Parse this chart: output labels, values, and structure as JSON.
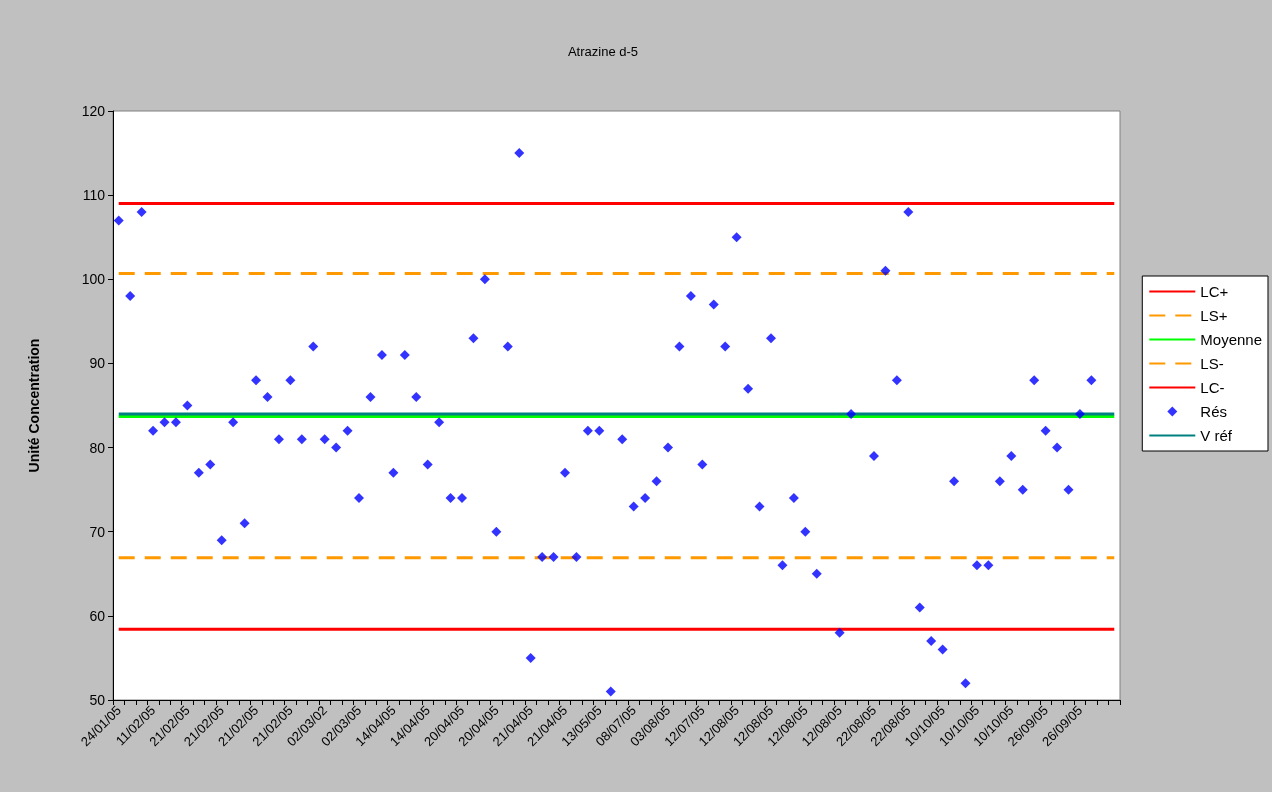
{
  "chart_data": {
    "type": "line",
    "title": "Atrazine d-5",
    "ylabel": "Unité Concentration",
    "categories": [
      "24/01/05",
      null,
      null,
      "11/02/05",
      null,
      null,
      "21/02/05",
      null,
      null,
      "21/02/05",
      null,
      null,
      "21/02/05",
      null,
      null,
      "21/02/05",
      null,
      null,
      "02/03/02",
      null,
      null,
      "02/03/05",
      null,
      null,
      "14/04/05",
      null,
      null,
      "14/04/05",
      null,
      null,
      "20/04/05",
      null,
      null,
      "20/04/05",
      null,
      null,
      "21/04/05",
      null,
      null,
      "21/04/05",
      null,
      null,
      "13/05/05",
      null,
      null,
      "08/07/05",
      null,
      null,
      "03/08/05",
      null,
      null,
      "12/07/05",
      null,
      null,
      "12/08/05",
      null,
      null,
      "12/08/05",
      null,
      null,
      "12/08/05",
      null,
      null,
      "12/08/05",
      null,
      null,
      "22/08/05",
      null,
      null,
      "22/08/05",
      null,
      null,
      "10/10/05",
      null,
      null,
      "10/10/05",
      null,
      null,
      "10/10/05",
      null,
      null,
      "26/09/05",
      null,
      null,
      "26/09/05",
      null,
      null,
      null
    ],
    "series": [
      {
        "name": "LC+",
        "color": "#ff0000",
        "line_style": "solid",
        "values": [
          109,
          109,
          109,
          109,
          109,
          109,
          109,
          109,
          109,
          109,
          109,
          109,
          109,
          109,
          109,
          109,
          109,
          109,
          109,
          109,
          109,
          109,
          109,
          109,
          109,
          109,
          109,
          109,
          109,
          109,
          109,
          109,
          109,
          109,
          109,
          109,
          109,
          109,
          109,
          109,
          109,
          109,
          109,
          109,
          109,
          109,
          109,
          109,
          109,
          109,
          109,
          109,
          109,
          109,
          109,
          109,
          109,
          109,
          109,
          109,
          109,
          109,
          109,
          109,
          109,
          109,
          109,
          109,
          109,
          109,
          109,
          109,
          109,
          109,
          109,
          109,
          109,
          109,
          109,
          109,
          109,
          109,
          109,
          109,
          109,
          109,
          109,
          109
        ]
      },
      {
        "name": "LS+",
        "color": "#ff9900",
        "line_style": "dashed",
        "values": [
          100.7,
          100.7,
          100.7,
          100.7,
          100.7,
          100.7,
          100.7,
          100.7,
          100.7,
          100.7,
          100.7,
          100.7,
          100.7,
          100.7,
          100.7,
          100.7,
          100.7,
          100.7,
          100.7,
          100.7,
          100.7,
          100.7,
          100.7,
          100.7,
          100.7,
          100.7,
          100.7,
          100.7,
          100.7,
          100.7,
          100.7,
          100.7,
          100.7,
          100.7,
          100.7,
          100.7,
          100.7,
          100.7,
          100.7,
          100.7,
          100.7,
          100.7,
          100.7,
          100.7,
          100.7,
          100.7,
          100.7,
          100.7,
          100.7,
          100.7,
          100.7,
          100.7,
          100.7,
          100.7,
          100.7,
          100.7,
          100.7,
          100.7,
          100.7,
          100.7,
          100.7,
          100.7,
          100.7,
          100.7,
          100.7,
          100.7,
          100.7,
          100.7,
          100.7,
          100.7,
          100.7,
          100.7,
          100.7,
          100.7,
          100.7,
          100.7,
          100.7,
          100.7,
          100.7,
          100.7,
          100.7,
          100.7,
          100.7,
          100.7,
          100.7,
          100.7,
          100.7,
          100.7
        ]
      },
      {
        "name": "Moyenne",
        "color": "#00ff00",
        "line_style": "solid",
        "values": [
          83.7,
          83.7,
          83.7,
          83.7,
          83.7,
          83.7,
          83.7,
          83.7,
          83.7,
          83.7,
          83.7,
          83.7,
          83.7,
          83.7,
          83.7,
          83.7,
          83.7,
          83.7,
          83.7,
          83.7,
          83.7,
          83.7,
          83.7,
          83.7,
          83.7,
          83.7,
          83.7,
          83.7,
          83.7,
          83.7,
          83.7,
          83.7,
          83.7,
          83.7,
          83.7,
          83.7,
          83.7,
          83.7,
          83.7,
          83.7,
          83.7,
          83.7,
          83.7,
          83.7,
          83.7,
          83.7,
          83.7,
          83.7,
          83.7,
          83.7,
          83.7,
          83.7,
          83.7,
          83.7,
          83.7,
          83.7,
          83.7,
          83.7,
          83.7,
          83.7,
          83.7,
          83.7,
          83.7,
          83.7,
          83.7,
          83.7,
          83.7,
          83.7,
          83.7,
          83.7,
          83.7,
          83.7,
          83.7,
          83.7,
          83.7,
          83.7,
          83.7,
          83.7,
          83.7,
          83.7,
          83.7,
          83.7,
          83.7,
          83.7,
          83.7,
          83.7,
          83.7,
          83.7
        ]
      },
      {
        "name": "LS-",
        "color": "#ff9900",
        "line_style": "dashed",
        "values": [
          66.9,
          66.9,
          66.9,
          66.9,
          66.9,
          66.9,
          66.9,
          66.9,
          66.9,
          66.9,
          66.9,
          66.9,
          66.9,
          66.9,
          66.9,
          66.9,
          66.9,
          66.9,
          66.9,
          66.9,
          66.9,
          66.9,
          66.9,
          66.9,
          66.9,
          66.9,
          66.9,
          66.9,
          66.9,
          66.9,
          66.9,
          66.9,
          66.9,
          66.9,
          66.9,
          66.9,
          66.9,
          66.9,
          66.9,
          66.9,
          66.9,
          66.9,
          66.9,
          66.9,
          66.9,
          66.9,
          66.9,
          66.9,
          66.9,
          66.9,
          66.9,
          66.9,
          66.9,
          66.9,
          66.9,
          66.9,
          66.9,
          66.9,
          66.9,
          66.9,
          66.9,
          66.9,
          66.9,
          66.9,
          66.9,
          66.9,
          66.9,
          66.9,
          66.9,
          66.9,
          66.9,
          66.9,
          66.9,
          66.9,
          66.9,
          66.9,
          66.9,
          66.9,
          66.9,
          66.9,
          66.9,
          66.9,
          66.9,
          66.9,
          66.9,
          66.9,
          66.9,
          66.9
        ]
      },
      {
        "name": "LC-",
        "color": "#ff0000",
        "line_style": "solid",
        "values": [
          58.4,
          58.4,
          58.4,
          58.4,
          58.4,
          58.4,
          58.4,
          58.4,
          58.4,
          58.4,
          58.4,
          58.4,
          58.4,
          58.4,
          58.4,
          58.4,
          58.4,
          58.4,
          58.4,
          58.4,
          58.4,
          58.4,
          58.4,
          58.4,
          58.4,
          58.4,
          58.4,
          58.4,
          58.4,
          58.4,
          58.4,
          58.4,
          58.4,
          58.4,
          58.4,
          58.4,
          58.4,
          58.4,
          58.4,
          58.4,
          58.4,
          58.4,
          58.4,
          58.4,
          58.4,
          58.4,
          58.4,
          58.4,
          58.4,
          58.4,
          58.4,
          58.4,
          58.4,
          58.4,
          58.4,
          58.4,
          58.4,
          58.4,
          58.4,
          58.4,
          58.4,
          58.4,
          58.4,
          58.4,
          58.4,
          58.4,
          58.4,
          58.4,
          58.4,
          58.4,
          58.4,
          58.4,
          58.4,
          58.4,
          58.4,
          58.4,
          58.4,
          58.4,
          58.4,
          58.4,
          58.4,
          58.4,
          58.4,
          58.4,
          58.4,
          58.4,
          58.4,
          58.4
        ]
      },
      {
        "name": "Rés",
        "type": "scatter",
        "color": "#0000ff",
        "marker": "diamond",
        "values": [
          107,
          98,
          108,
          82,
          83,
          83,
          85,
          77,
          78,
          69,
          83,
          71,
          88,
          86,
          81,
          88,
          81,
          92,
          81,
          80,
          82,
          74,
          86,
          91,
          77,
          91,
          86,
          78,
          83,
          74,
          74,
          93,
          100,
          70,
          92,
          115,
          55,
          67,
          67,
          77,
          67,
          82,
          82,
          51,
          81,
          73,
          74,
          76,
          80,
          92,
          98,
          78,
          97,
          92,
          105,
          87,
          73,
          93,
          66,
          74,
          70,
          65,
          null,
          58,
          84,
          null,
          79,
          101,
          88,
          108,
          61,
          57,
          56,
          76,
          52,
          66,
          66,
          76,
          79,
          75,
          88,
          82,
          80,
          75,
          84,
          88,
          null,
          null
        ]
      },
      {
        "name": "V réf",
        "color": "#008080",
        "line_style": "solid",
        "values": [
          84,
          84,
          84,
          84,
          84,
          84,
          84,
          84,
          84,
          84,
          84,
          84,
          84,
          84,
          84,
          84,
          84,
          84,
          84,
          84,
          84,
          84,
          84,
          84,
          84,
          84,
          84,
          84,
          84,
          84,
          84,
          84,
          84,
          84,
          84,
          84,
          84,
          84,
          84,
          84,
          84,
          84,
          84,
          84,
          84,
          84,
          84,
          84,
          84,
          84,
          84,
          84,
          84,
          84,
          84,
          84,
          84,
          84,
          84,
          84,
          84,
          84,
          84,
          84,
          84,
          84,
          84,
          84,
          84,
          84,
          84,
          84,
          84,
          84,
          84,
          84,
          84,
          84,
          84,
          84,
          84,
          84,
          84,
          84,
          84,
          84,
          84,
          84
        ]
      }
    ],
    "ylim": [
      50,
      120
    ],
    "yticks": [
      50,
      60,
      70,
      80,
      90,
      100,
      110,
      120
    ],
    "grid": false,
    "legend": "right"
  }
}
